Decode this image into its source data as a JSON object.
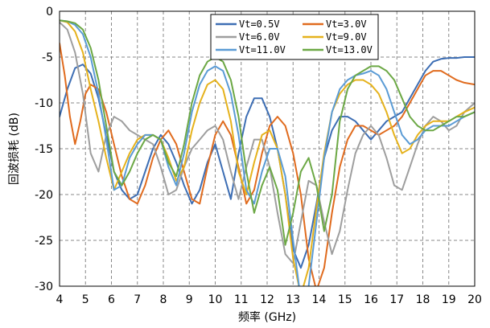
{
  "chart_data": {
    "type": "line",
    "xlabel": "频率 (GHz)",
    "ylabel": "回波损耗 (dB)",
    "xlim": [
      4,
      20
    ],
    "ylim": [
      -30,
      0
    ],
    "xticks": [
      4,
      5,
      6,
      7,
      8,
      9,
      10,
      11,
      12,
      13,
      14,
      15,
      16,
      17,
      18,
      19,
      20
    ],
    "yticks": [
      0,
      -5,
      -10,
      -15,
      -20,
      -25,
      -30
    ],
    "grid": true,
    "grid_style": "dashed",
    "legend_position": "top",
    "series": [
      {
        "name": "Vt=0.5V",
        "color": "#3d6eb4",
        "x": [
          4.0,
          4.3,
          4.6,
          4.9,
          5.2,
          5.5,
          5.8,
          6.1,
          6.4,
          6.7,
          7.0,
          7.3,
          7.6,
          7.9,
          8.2,
          8.5,
          8.8,
          9.1,
          9.4,
          9.7,
          10.0,
          10.3,
          10.6,
          10.9,
          11.2,
          11.5,
          11.8,
          12.1,
          12.4,
          12.7,
          13.0,
          13.3,
          13.6,
          13.9,
          14.2,
          14.5,
          14.8,
          15.1,
          15.4,
          15.7,
          16.0,
          16.3,
          16.6,
          16.9,
          17.2,
          17.5,
          17.8,
          18.1,
          18.4,
          18.7,
          19.0,
          19.3,
          19.6,
          20.0
        ],
        "values": [
          -11.5,
          -8.5,
          -6.2,
          -5.8,
          -6.8,
          -9.5,
          -13.5,
          -17.5,
          -19.5,
          -20.5,
          -20.0,
          -17.5,
          -15.0,
          -13.5,
          -14.5,
          -16.5,
          -19.0,
          -21.0,
          -19.5,
          -16.5,
          -14.5,
          -17.5,
          -20.5,
          -15.5,
          -11.5,
          -9.5,
          -9.5,
          -11.5,
          -15.0,
          -20.0,
          -26.0,
          -28.0,
          -25.5,
          -21.0,
          -16.0,
          -13.0,
          -11.5,
          -11.5,
          -12.0,
          -13.0,
          -14.0,
          -13.0,
          -12.0,
          -11.5,
          -11.0,
          -9.5,
          -8.0,
          -6.5,
          -5.5,
          -5.2,
          -5.1,
          -5.1,
          -5.0,
          -5.0
        ]
      },
      {
        "name": "Vt=3.0V",
        "color": "#e06b1e",
        "x": [
          4.0,
          4.2,
          4.4,
          4.6,
          4.8,
          5.0,
          5.2,
          5.5,
          5.8,
          6.1,
          6.4,
          6.7,
          7.0,
          7.3,
          7.6,
          7.9,
          8.2,
          8.5,
          8.8,
          9.1,
          9.4,
          9.7,
          10.0,
          10.3,
          10.6,
          10.9,
          11.2,
          11.5,
          11.8,
          12.1,
          12.4,
          12.7,
          13.0,
          13.3,
          13.6,
          13.9,
          14.2,
          14.5,
          14.8,
          15.1,
          15.4,
          15.7,
          16.0,
          16.3,
          16.6,
          16.9,
          17.2,
          17.5,
          17.8,
          18.1,
          18.4,
          18.7,
          19.0,
          19.3,
          19.6,
          20.0
        ],
        "values": [
          -3.5,
          -7.0,
          -11.5,
          -14.5,
          -12.0,
          -9.0,
          -8.0,
          -8.5,
          -11.0,
          -14.5,
          -18.0,
          -20.5,
          -21.0,
          -19.0,
          -16.0,
          -14.0,
          -13.0,
          -14.5,
          -17.5,
          -20.5,
          -21.0,
          -17.0,
          -13.5,
          -12.0,
          -13.5,
          -17.0,
          -21.0,
          -19.5,
          -15.5,
          -12.5,
          -11.5,
          -12.5,
          -15.5,
          -20.0,
          -27.0,
          -30.5,
          -28.0,
          -22.0,
          -17.0,
          -14.0,
          -12.5,
          -12.5,
          -13.0,
          -13.5,
          -13.0,
          -12.5,
          -11.5,
          -10.0,
          -8.5,
          -7.0,
          -6.5,
          -6.5,
          -7.0,
          -7.5,
          -7.8,
          -8.0
        ]
      },
      {
        "name": "Vt=6.0V",
        "color": "#9e9e9e",
        "x": [
          4.0,
          4.3,
          4.6,
          4.9,
          5.2,
          5.5,
          5.8,
          6.1,
          6.4,
          6.7,
          7.0,
          7.3,
          7.6,
          7.9,
          8.2,
          8.5,
          8.8,
          9.1,
          9.4,
          9.7,
          10.0,
          10.3,
          10.6,
          10.9,
          11.2,
          11.5,
          11.8,
          12.1,
          12.4,
          12.7,
          13.0,
          13.3,
          13.6,
          13.9,
          14.2,
          14.5,
          14.8,
          15.1,
          15.4,
          15.7,
          16.0,
          16.3,
          16.6,
          16.9,
          17.2,
          17.5,
          17.8,
          18.1,
          18.4,
          18.7,
          19.0,
          19.3,
          19.6,
          20.0
        ],
        "values": [
          -1.2,
          -2.0,
          -4.5,
          -9.0,
          -15.5,
          -17.5,
          -13.5,
          -11.5,
          -12.0,
          -13.0,
          -13.5,
          -14.0,
          -14.5,
          -17.0,
          -20.0,
          -19.5,
          -17.0,
          -15.0,
          -14.0,
          -13.0,
          -12.5,
          -14.0,
          -17.5,
          -20.5,
          -17.0,
          -14.0,
          -14.0,
          -17.0,
          -22.0,
          -26.5,
          -27.5,
          -23.0,
          -18.5,
          -19.0,
          -23.0,
          -26.5,
          -24.0,
          -19.5,
          -15.5,
          -13.5,
          -12.5,
          -13.5,
          -16.0,
          -19.0,
          -19.5,
          -17.0,
          -14.5,
          -12.5,
          -11.5,
          -12.0,
          -13.0,
          -12.5,
          -11.0,
          -10.0
        ]
      },
      {
        "name": "Vt=9.0V",
        "color": "#e5b21c",
        "x": [
          4.0,
          4.3,
          4.6,
          4.9,
          5.2,
          5.5,
          5.8,
          6.1,
          6.4,
          6.7,
          7.0,
          7.3,
          7.6,
          7.9,
          8.2,
          8.5,
          8.8,
          9.1,
          9.4,
          9.7,
          10.0,
          10.3,
          10.6,
          10.9,
          11.2,
          11.5,
          11.8,
          12.1,
          12.4,
          12.7,
          13.0,
          13.3,
          13.6,
          13.9,
          14.2,
          14.5,
          14.8,
          15.1,
          15.4,
          15.7,
          16.0,
          16.3,
          16.6,
          16.9,
          17.2,
          17.5,
          17.8,
          18.1,
          18.4,
          18.7,
          19.0,
          19.3,
          19.6,
          20.0
        ],
        "values": [
          -1.0,
          -1.2,
          -2.2,
          -4.5,
          -8.5,
          -12.0,
          -16.0,
          -19.5,
          -17.5,
          -15.5,
          -14.0,
          -13.5,
          -13.5,
          -14.0,
          -16.0,
          -18.5,
          -17.0,
          -13.0,
          -10.0,
          -8.0,
          -7.5,
          -8.5,
          -12.0,
          -17.5,
          -20.0,
          -16.5,
          -13.5,
          -13.0,
          -15.0,
          -20.0,
          -27.0,
          -31.0,
          -28.0,
          -21.5,
          -15.5,
          -11.0,
          -9.0,
          -8.0,
          -7.5,
          -7.5,
          -8.0,
          -9.0,
          -11.0,
          -13.5,
          -15.5,
          -15.0,
          -13.5,
          -12.5,
          -12.0,
          -12.0,
          -12.0,
          -11.5,
          -11.0,
          -10.5
        ]
      },
      {
        "name": "Vt=11.0V",
        "color": "#5a9bd5",
        "x": [
          4.0,
          4.3,
          4.6,
          4.9,
          5.2,
          5.5,
          5.8,
          6.1,
          6.4,
          6.7,
          7.0,
          7.3,
          7.6,
          7.9,
          8.2,
          8.5,
          8.8,
          9.1,
          9.4,
          9.7,
          10.0,
          10.3,
          10.6,
          10.9,
          11.2,
          11.5,
          11.8,
          12.1,
          12.4,
          12.7,
          13.0,
          13.3,
          13.6,
          13.9,
          14.2,
          14.5,
          14.8,
          15.1,
          15.4,
          15.7,
          16.0,
          16.3,
          16.6,
          16.9,
          17.2,
          17.5,
          17.8,
          18.1,
          18.4,
          18.7,
          19.0,
          19.3,
          19.6,
          20.0
        ],
        "values": [
          -1.0,
          -1.1,
          -1.5,
          -2.5,
          -5.0,
          -9.0,
          -14.0,
          -19.5,
          -19.0,
          -16.0,
          -14.5,
          -13.5,
          -13.5,
          -14.0,
          -17.0,
          -19.0,
          -15.5,
          -11.0,
          -8.0,
          -6.5,
          -6.0,
          -6.5,
          -9.0,
          -13.5,
          -19.5,
          -21.0,
          -17.5,
          -15.0,
          -15.0,
          -18.0,
          -25.0,
          -31.5,
          -30.0,
          -23.0,
          -16.0,
          -11.0,
          -8.5,
          -7.5,
          -7.0,
          -6.8,
          -6.5,
          -7.0,
          -8.5,
          -11.0,
          -13.5,
          -14.5,
          -14.0,
          -13.0,
          -12.5,
          -12.5,
          -12.5,
          -12.0,
          -11.5,
          -11.0
        ]
      },
      {
        "name": "Vt=13.0V",
        "color": "#6ca845",
        "x": [
          4.0,
          4.3,
          4.6,
          4.9,
          5.2,
          5.5,
          5.8,
          6.1,
          6.4,
          6.7,
          7.0,
          7.3,
          7.6,
          7.9,
          8.2,
          8.5,
          8.8,
          9.1,
          9.4,
          9.7,
          10.0,
          10.3,
          10.6,
          10.9,
          11.2,
          11.5,
          11.8,
          12.1,
          12.4,
          12.7,
          13.0,
          13.3,
          13.6,
          13.9,
          14.2,
          14.5,
          14.8,
          15.1,
          15.4,
          15.7,
          16.0,
          16.3,
          16.6,
          16.9,
          17.2,
          17.5,
          17.8,
          18.1,
          18.4,
          18.7,
          19.0,
          19.3,
          19.6,
          20.0
        ],
        "values": [
          -1.0,
          -1.1,
          -1.3,
          -2.0,
          -4.0,
          -7.5,
          -12.5,
          -17.5,
          -19.0,
          -17.5,
          -15.5,
          -14.0,
          -13.5,
          -14.0,
          -16.5,
          -18.0,
          -14.5,
          -10.0,
          -7.0,
          -5.5,
          -5.0,
          -5.5,
          -7.5,
          -11.5,
          -17.5,
          -22.0,
          -19.0,
          -17.0,
          -19.5,
          -25.5,
          -22.0,
          -17.5,
          -16.0,
          -19.0,
          -24.0,
          -20.0,
          -12.0,
          -8.5,
          -7.0,
          -6.5,
          -6.0,
          -6.0,
          -6.5,
          -7.5,
          -9.5,
          -11.5,
          -12.5,
          -13.0,
          -13.0,
          -12.5,
          -12.0,
          -11.5,
          -11.5,
          -11.0
        ]
      }
    ]
  }
}
